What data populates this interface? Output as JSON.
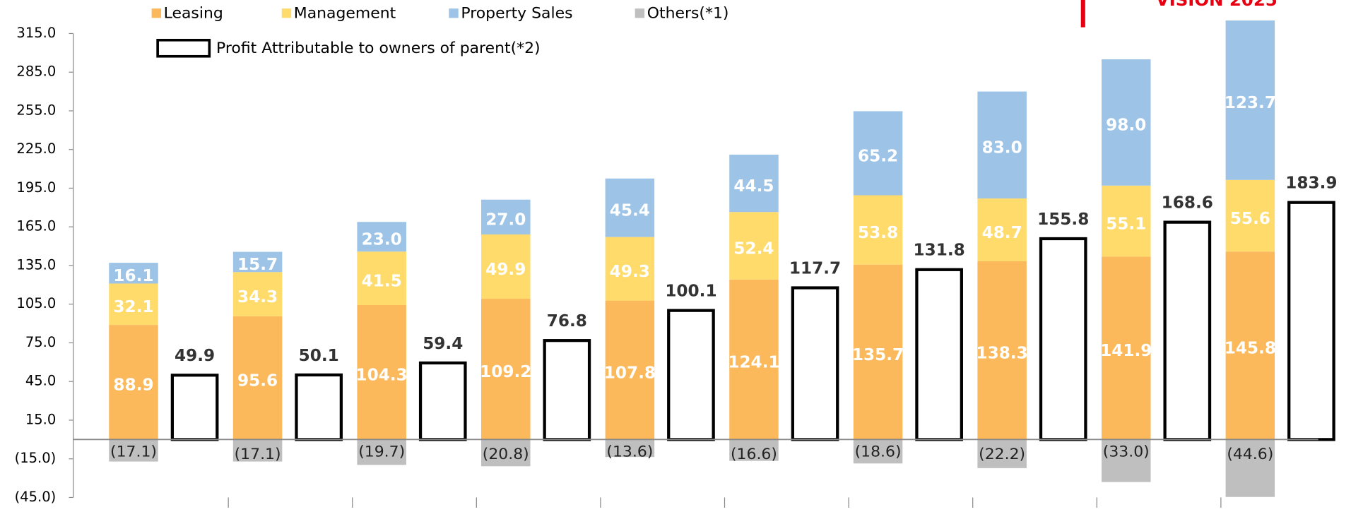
{
  "chart_data": {
    "type": "bar",
    "annotations": [
      "VISION 2025"
    ],
    "categories": [
      null,
      null,
      null,
      null,
      null,
      null,
      null,
      null,
      null,
      null
    ],
    "ylim": [
      -45,
      341
    ],
    "yticks": [
      {
        "value": -45,
        "label": "(45.0)"
      },
      {
        "value": -15,
        "label": "(15.0)"
      },
      {
        "value": 15,
        "label": "15.0"
      },
      {
        "value": 45,
        "label": "45.0"
      },
      {
        "value": 75,
        "label": "75.0"
      },
      {
        "value": 105,
        "label": "105.0"
      },
      {
        "value": 135,
        "label": "135.0"
      },
      {
        "value": 165,
        "label": "165.0"
      },
      {
        "value": 195,
        "label": "195.0"
      },
      {
        "value": 225,
        "label": "225.0"
      },
      {
        "value": 255,
        "label": "255.0"
      },
      {
        "value": 285,
        "label": "285.0"
      },
      {
        "value": 315,
        "label": "315.0"
      }
    ],
    "series": [
      {
        "name": "Leasing",
        "color": "#fbb95b",
        "values": [
          88.9,
          95.6,
          104.3,
          109.2,
          107.8,
          124.1,
          135.7,
          138.3,
          141.9,
          145.8
        ],
        "value_labels": [
          "88.9",
          "95.6",
          "104.3",
          "109.2",
          "107.8",
          "124.1",
          "135.7",
          "138.3",
          "141.9",
          "145.8"
        ]
      },
      {
        "name": "Management",
        "color": "#fedb6b",
        "values": [
          32.1,
          34.3,
          41.5,
          49.9,
          49.3,
          52.4,
          53.8,
          48.7,
          55.1,
          55.6
        ],
        "value_labels": [
          "32.1",
          "34.3",
          "41.5",
          "49.9",
          "49.3",
          "52.4",
          "53.8",
          "48.7",
          "55.1",
          "55.6"
        ]
      },
      {
        "name": "Property Sales",
        "color": "#9dc3e6",
        "values": [
          16.1,
          15.7,
          23.0,
          27.0,
          45.4,
          44.5,
          65.2,
          83.0,
          98.0,
          123.7
        ],
        "value_labels": [
          "16.1",
          "15.7",
          "23.0",
          "27.0",
          "45.4",
          "44.5",
          "65.2",
          "83.0",
          "98.0",
          "123.7"
        ]
      },
      {
        "name": "Others(*1)",
        "color": "#bfbfbf",
        "values": [
          -17.1,
          -17.1,
          -19.7,
          -20.8,
          -13.6,
          -16.6,
          -18.6,
          -22.2,
          -33.0,
          -44.6
        ],
        "value_labels": [
          "(17.1)",
          "(17.1)",
          "(19.7)",
          "(20.8)",
          "(13.6)",
          "(16.6)",
          "(18.6)",
          "(22.2)",
          "(33.0)",
          "(44.6)"
        ]
      },
      {
        "name": "Profit Attributable to owners of parent(*2)",
        "color": "#000000",
        "fill": "#ffffff",
        "values": [
          49.9,
          50.1,
          59.4,
          76.8,
          100.1,
          117.7,
          131.8,
          155.8,
          168.6,
          183.9
        ],
        "value_labels": [
          "49.9",
          "50.1",
          "59.4",
          "76.8",
          "100.1",
          "117.7",
          "131.8",
          "155.8",
          "168.6",
          "183.9"
        ]
      }
    ]
  }
}
